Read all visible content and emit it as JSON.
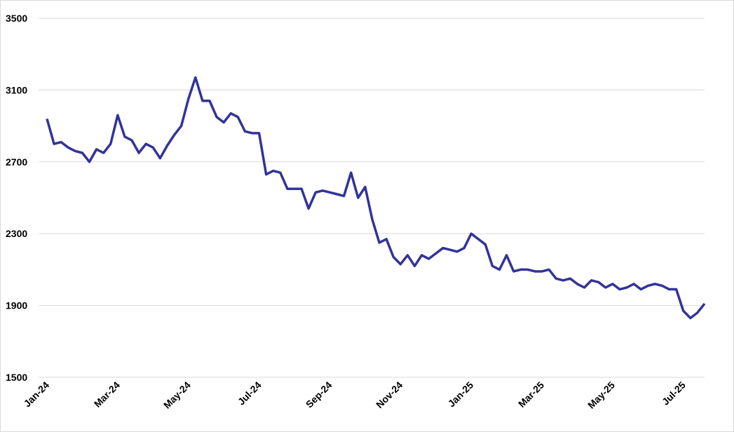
{
  "chart_data": {
    "type": "line",
    "categories": [
      "Jan-24",
      null,
      null,
      null,
      null,
      null,
      null,
      null,
      null,
      null,
      "Mar-24",
      null,
      null,
      null,
      null,
      null,
      null,
      null,
      null,
      null,
      "May-24",
      null,
      null,
      null,
      null,
      null,
      null,
      null,
      null,
      null,
      "Jul-24",
      null,
      null,
      null,
      null,
      null,
      null,
      null,
      null,
      null,
      "Sep-24",
      null,
      null,
      null,
      null,
      null,
      null,
      null,
      null,
      null,
      "Nov-24",
      null,
      null,
      null,
      null,
      null,
      null,
      null,
      null,
      null,
      "Jan-25",
      null,
      null,
      null,
      null,
      null,
      null,
      null,
      null,
      null,
      "Mar-25",
      null,
      null,
      null,
      null,
      null,
      null,
      null,
      null,
      null,
      "May-25",
      null,
      null,
      null,
      null,
      null,
      null,
      null,
      null,
      null,
      "Jul-25",
      null,
      null,
      null
    ],
    "values": [
      2940,
      2800,
      2810,
      2780,
      2760,
      2750,
      2700,
      2770,
      2750,
      2800,
      2960,
      2840,
      2820,
      2750,
      2800,
      2780,
      2720,
      2790,
      2850,
      2900,
      3050,
      3170,
      3040,
      3040,
      2950,
      2920,
      2970,
      2950,
      2870,
      2860,
      2860,
      2630,
      2650,
      2640,
      2550,
      2550,
      2550,
      2440,
      2530,
      2540,
      2530,
      2520,
      2510,
      2640,
      2500,
      2560,
      2380,
      2250,
      2270,
      2170,
      2130,
      2180,
      2120,
      2180,
      2160,
      2190,
      2220,
      2210,
      2200,
      2220,
      2300,
      2270,
      2240,
      2120,
      2100,
      2180,
      2090,
      2100,
      2100,
      2090,
      2090,
      2100,
      2050,
      2040,
      2050,
      2020,
      2000,
      2040,
      2030,
      2000,
      2020,
      1990,
      2000,
      2020,
      1990,
      2010,
      2020,
      2010,
      1990,
      1990,
      1870,
      1830,
      1860,
      1910
    ],
    "color": "#333399",
    "ylim": [
      1500,
      3500
    ],
    "yticks": [
      1500,
      1900,
      2300,
      2700,
      3100,
      3500
    ],
    "grid": true
  }
}
